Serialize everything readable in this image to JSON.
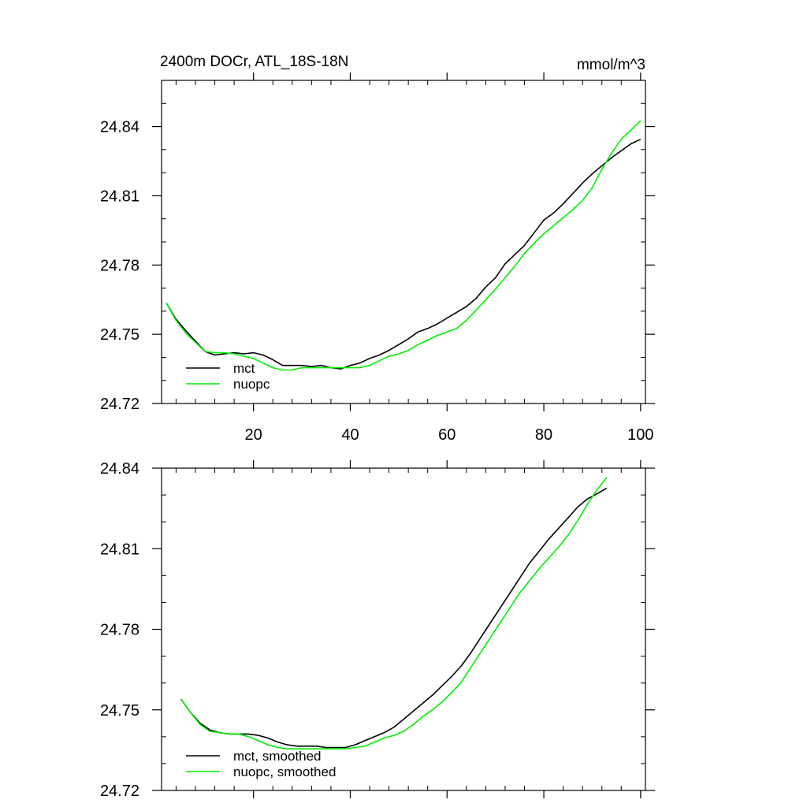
{
  "chart_data": [
    {
      "type": "line",
      "title": "2400m DOCr, ATL_18S-18N",
      "units": "mmol/m^3",
      "xlim": [
        1,
        101
      ],
      "ylim": [
        24.72,
        24.86
      ],
      "xticks": [
        20,
        40,
        60,
        80,
        100
      ],
      "yticks": [
        24.72,
        24.75,
        24.78,
        24.81,
        24.84
      ],
      "xtick_labels": [
        "20",
        "40",
        "60",
        "80",
        "100"
      ],
      "ytick_labels": [
        "24.72",
        "24.75",
        "24.78",
        "24.81",
        "24.84"
      ],
      "legend_position": "bottom-left",
      "series": [
        {
          "name": "mct",
          "color": "#000000",
          "points": [
            [
              2,
              24.7635
            ],
            [
              4,
              24.7565
            ],
            [
              6,
              24.7515
            ],
            [
              8,
              24.747
            ],
            [
              10,
              24.7425
            ],
            [
              12,
              24.741
            ],
            [
              14,
              24.7415
            ],
            [
              16,
              24.742
            ],
            [
              18,
              24.7415
            ],
            [
              20,
              24.742
            ],
            [
              22,
              24.741
            ],
            [
              24,
              24.739
            ],
            [
              26,
              24.7365
            ],
            [
              28,
              24.7365
            ],
            [
              30,
              24.7365
            ],
            [
              32,
              24.736
            ],
            [
              34,
              24.7365
            ],
            [
              36,
              24.7355
            ],
            [
              38,
              24.735
            ],
            [
              40,
              24.7365
            ],
            [
              42,
              24.7375
            ],
            [
              44,
              24.7395
            ],
            [
              46,
              24.741
            ],
            [
              48,
              24.743
            ],
            [
              50,
              24.7455
            ],
            [
              52,
              24.748
            ],
            [
              54,
              24.751
            ],
            [
              56,
              24.7525
            ],
            [
              58,
              24.7545
            ],
            [
              60,
              24.757
            ],
            [
              62,
              24.7595
            ],
            [
              64,
              24.762
            ],
            [
              66,
              24.7655
            ],
            [
              68,
              24.7705
            ],
            [
              70,
              24.7745
            ],
            [
              72,
              24.7805
            ],
            [
              74,
              24.7845
            ],
            [
              76,
              24.7885
            ],
            [
              78,
              24.794
            ],
            [
              80,
              24.7995
            ],
            [
              82,
              24.8025
            ],
            [
              84,
              24.8065
            ],
            [
              86,
              24.811
            ],
            [
              88,
              24.8155
            ],
            [
              90,
              24.8195
            ],
            [
              92,
              24.823
            ],
            [
              94,
              24.8265
            ],
            [
              96,
              24.8295
            ],
            [
              98,
              24.8325
            ],
            [
              100,
              24.8345
            ]
          ]
        },
        {
          "name": "nuopc",
          "color": "#00ee00",
          "points": [
            [
              2,
              24.7635
            ],
            [
              4,
              24.756
            ],
            [
              6,
              24.7505
            ],
            [
              8,
              24.7465
            ],
            [
              10,
              24.7425
            ],
            [
              12,
              24.742
            ],
            [
              14,
              24.742
            ],
            [
              16,
              24.7415
            ],
            [
              18,
              24.7405
            ],
            [
              20,
              24.7395
            ],
            [
              22,
              24.7375
            ],
            [
              24,
              24.7355
            ],
            [
              26,
              24.7345
            ],
            [
              28,
              24.7345
            ],
            [
              30,
              24.7355
            ],
            [
              32,
              24.7355
            ],
            [
              34,
              24.7355
            ],
            [
              36,
              24.7355
            ],
            [
              38,
              24.7355
            ],
            [
              40,
              24.7355
            ],
            [
              42,
              24.7355
            ],
            [
              44,
              24.7365
            ],
            [
              46,
              24.7385
            ],
            [
              48,
              24.7405
            ],
            [
              50,
              24.7415
            ],
            [
              52,
              24.743
            ],
            [
              54,
              24.7455
            ],
            [
              56,
              24.7475
            ],
            [
              58,
              24.7495
            ],
            [
              60,
              24.751
            ],
            [
              62,
              24.7525
            ],
            [
              64,
              24.756
            ],
            [
              66,
              24.7605
            ],
            [
              68,
              24.765
            ],
            [
              70,
              24.7695
            ],
            [
              72,
              24.7745
            ],
            [
              74,
              24.7795
            ],
            [
              76,
              24.785
            ],
            [
              78,
              24.7895
            ],
            [
              80,
              24.7935
            ],
            [
              82,
              24.797
            ],
            [
              84,
              24.8005
            ],
            [
              86,
              24.804
            ],
            [
              88,
              24.808
            ],
            [
              90,
              24.8135
            ],
            [
              92,
              24.8215
            ],
            [
              94,
              24.8285
            ],
            [
              96,
              24.8345
            ],
            [
              98,
              24.8385
            ],
            [
              100,
              24.8425
            ]
          ]
        }
      ]
    },
    {
      "type": "line",
      "xlim": [
        1,
        101
      ],
      "ylim": [
        24.72,
        24.84
      ],
      "xticks": [
        20,
        40,
        60,
        80,
        100
      ],
      "yticks": [
        24.72,
        24.75,
        24.78,
        24.81,
        24.84
      ],
      "ytick_labels": [
        "24.72",
        "24.75",
        "24.78",
        "24.81",
        "24.84"
      ],
      "legend_position": "bottom-left",
      "series": [
        {
          "name": "mct, smoothed",
          "color": "#000000",
          "points": [
            [
              5,
              24.754
            ],
            [
              7,
              24.749
            ],
            [
              9,
              24.745
            ],
            [
              11,
              24.7425
            ],
            [
              13,
              24.7415
            ],
            [
              15,
              24.741
            ],
            [
              17,
              24.741
            ],
            [
              19,
              24.741
            ],
            [
              21,
              24.7405
            ],
            [
              23,
              24.7395
            ],
            [
              25,
              24.738
            ],
            [
              27,
              24.737
            ],
            [
              29,
              24.7365
            ],
            [
              31,
              24.7365
            ],
            [
              33,
              24.7365
            ],
            [
              35,
              24.736
            ],
            [
              37,
              24.736
            ],
            [
              39,
              24.736
            ],
            [
              41,
              24.737
            ],
            [
              43,
              24.7385
            ],
            [
              45,
              24.74
            ],
            [
              47,
              24.7415
            ],
            [
              49,
              24.7435
            ],
            [
              51,
              24.7465
            ],
            [
              53,
              24.7495
            ],
            [
              55,
              24.7525
            ],
            [
              57,
              24.7555
            ],
            [
              59,
              24.759
            ],
            [
              61,
              24.7625
            ],
            [
              63,
              24.7665
            ],
            [
              65,
              24.7715
            ],
            [
              67,
              24.777
            ],
            [
              69,
              24.7825
            ],
            [
              71,
              24.788
            ],
            [
              73,
              24.7935
            ],
            [
              75,
              24.799
            ],
            [
              77,
              24.8045
            ],
            [
              79,
              24.809
            ],
            [
              81,
              24.8135
            ],
            [
              83,
              24.8175
            ],
            [
              85,
              24.8215
            ],
            [
              87,
              24.8255
            ],
            [
              89,
              24.8285
            ],
            [
              91,
              24.8305
            ],
            [
              93,
              24.8325
            ]
          ]
        },
        {
          "name": "nuopc, smoothed",
          "color": "#00ee00",
          "points": [
            [
              5,
              24.754
            ],
            [
              7,
              24.749
            ],
            [
              9,
              24.7445
            ],
            [
              11,
              24.742
            ],
            [
              13,
              24.7415
            ],
            [
              15,
              24.741
            ],
            [
              17,
              24.741
            ],
            [
              19,
              24.74
            ],
            [
              21,
              24.7385
            ],
            [
              23,
              24.737
            ],
            [
              25,
              24.736
            ],
            [
              27,
              24.7355
            ],
            [
              29,
              24.7355
            ],
            [
              31,
              24.7355
            ],
            [
              33,
              24.7355
            ],
            [
              35,
              24.7355
            ],
            [
              37,
              24.7355
            ],
            [
              39,
              24.7355
            ],
            [
              41,
              24.736
            ],
            [
              43,
              24.7365
            ],
            [
              45,
              24.738
            ],
            [
              47,
              24.7395
            ],
            [
              49,
              24.7405
            ],
            [
              51,
              24.742
            ],
            [
              53,
              24.7445
            ],
            [
              55,
              24.7475
            ],
            [
              57,
              24.75
            ],
            [
              59,
              24.753
            ],
            [
              61,
              24.7565
            ],
            [
              63,
              24.7605
            ],
            [
              65,
              24.766
            ],
            [
              67,
              24.7715
            ],
            [
              69,
              24.777
            ],
            [
              71,
              24.7825
            ],
            [
              73,
              24.788
            ],
            [
              75,
              24.7935
            ],
            [
              77,
              24.798
            ],
            [
              79,
              24.8025
            ],
            [
              81,
              24.8065
            ],
            [
              83,
              24.8105
            ],
            [
              85,
              24.815
            ],
            [
              87,
              24.8205
            ],
            [
              89,
              24.8265
            ],
            [
              91,
              24.832
            ],
            [
              93,
              24.8365
            ]
          ]
        }
      ]
    }
  ]
}
